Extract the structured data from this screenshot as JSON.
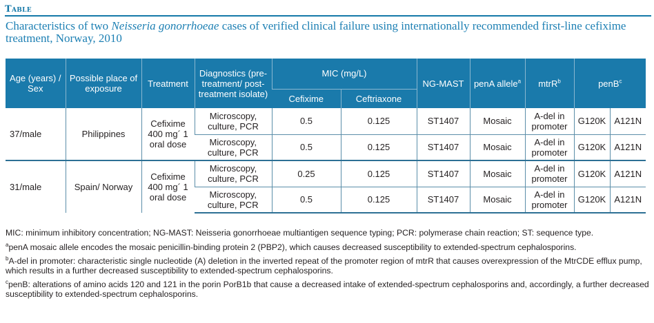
{
  "header": {
    "label": "Table"
  },
  "caption": {
    "pre": "Characteristics of two ",
    "species": "Neisseria gonorrhoeae",
    "post": " cases of verified clinical failure using internationally recommended first-line cefixime treatment, Norway, 2010"
  },
  "table": {
    "columns": {
      "age": "Age (years) / Sex",
      "place": "Possible place of exposure",
      "treatment": "Treatment",
      "diagnostics": "Diagnostics (pre-treatment/ post-treatment isolate)",
      "mic": "MIC (mg/L)",
      "cefixime": "Cefixime",
      "ceftriaxone": "Ceftriaxone",
      "ngmast": "NG-MAST",
      "pena": "penA allele",
      "pena_sup": "a",
      "mtrr": "mtrR",
      "mtrr_sup": "b",
      "penb": "penB",
      "penb_sup": "c"
    },
    "cases": [
      {
        "age_sex": "37/male",
        "place": "Philippines",
        "treatment": "Cefixime 400 mg´ 1 oral dose",
        "isolates": [
          {
            "diagnostics": "Microscopy, culture, PCR",
            "cefixime": "0.5",
            "ceftriaxone": "0.125",
            "ngmast": "ST1407",
            "pena": "Mosaic",
            "mtrr": "A-del in promoter",
            "penb1": "G120K",
            "penb2": "A121N"
          },
          {
            "diagnostics": "Microscopy, culture, PCR",
            "cefixime": "0.5",
            "ceftriaxone": "0.125",
            "ngmast": "ST1407",
            "pena": "Mosaic",
            "mtrr": "A-del in promoter",
            "penb1": "G120K",
            "penb2": "A121N"
          }
        ]
      },
      {
        "age_sex": "31/male",
        "place": "Spain/ Norway",
        "treatment": "Cefixime 400 mg´ 1 oral dose",
        "isolates": [
          {
            "diagnostics": "Microscopy, culture, PCR",
            "cefixime": "0.25",
            "ceftriaxone": "0.125",
            "ngmast": "ST1407",
            "pena": "Mosaic",
            "mtrr": "A-del in promoter",
            "penb1": "G120K",
            "penb2": "A121N"
          },
          {
            "diagnostics": "Microscopy, culture, PCR",
            "cefixime": "0.5",
            "ceftriaxone": "0.125",
            "ngmast": "ST1407",
            "pena": "Mosaic",
            "mtrr": "A-del in promoter",
            "penb1": "G120K",
            "penb2": "A121N"
          }
        ]
      }
    ]
  },
  "footnotes": {
    "abbreviations": "MIC: minimum inhibitory concentration; NG-MAST: Neisseria gonorrhoeae multiantigen sequence typing; PCR: polymerase chain reaction; ST: sequence type.",
    "a_mark": "a",
    "a": "penA mosaic allele encodes the mosaic penicillin-binding protein 2 (PBP2), which causes decreased susceptibility to extended-spectrum cephalosporins.",
    "b_mark": "b",
    "b": "A-del in promoter: characteristic single nucleotide (A) deletion in the inverted repeat of the promoter region of mtrR that causes overexpression of the MtrCDE efflux pump, which results in a further decreased susceptibility to extended-spectrum cephalosporins.",
    "c_mark": "c",
    "c": "penB: alterations of amino acids 120 and 121 in the porin PorB1b that cause a decreased intake of extended-spectrum cephalosporins and, accordingly, a further decreased susceptibility to extended-spectrum cephalosporins."
  },
  "colors": {
    "accent": "#1478a8",
    "header_bg": "#1a7aab",
    "caption": "#1c7fb3"
  }
}
